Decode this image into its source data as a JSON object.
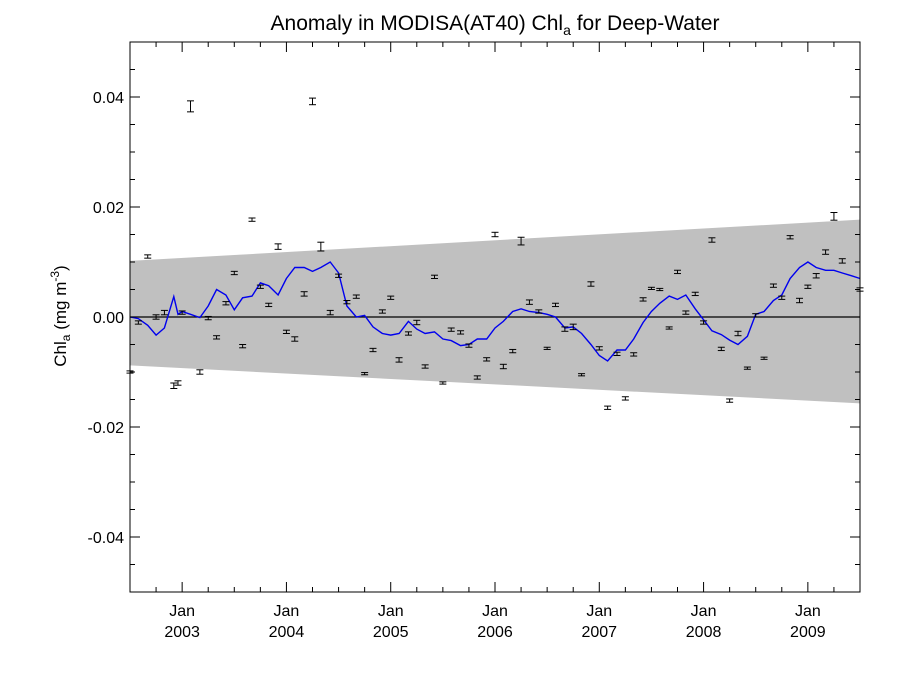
{
  "chart_data": {
    "type": "line",
    "title": "Anomaly in MODISA(AT40) Chl",
    "title_subscript": "a",
    "title_suffix": " for Deep-Water",
    "ylabel": "Chl",
    "ylabel_subscript": "a",
    "ylabel_units_open": " (mg m",
    "ylabel_units_sup": "-3",
    "ylabel_units_close": ")",
    "xlim": [
      2002.5,
      2009.5
    ],
    "ylim": [
      -0.05,
      0.05
    ],
    "y_ticks": [
      -0.04,
      -0.02,
      0.0,
      0.02,
      0.04
    ],
    "y_tick_labels": [
      "-0.04",
      "-0.02",
      "0.00",
      "0.02",
      "0.04"
    ],
    "x_ticks": [
      {
        "x": 2003.0,
        "month": "Jan",
        "year": "2003"
      },
      {
        "x": 2004.0,
        "month": "Jan",
        "year": "2004"
      },
      {
        "x": 2005.0,
        "month": "Jan",
        "year": "2005"
      },
      {
        "x": 2006.0,
        "month": "Jan",
        "year": "2006"
      },
      {
        "x": 2007.0,
        "month": "Jan",
        "year": "2007"
      },
      {
        "x": 2008.0,
        "month": "Jan",
        "year": "2008"
      },
      {
        "x": 2009.0,
        "month": "Jan",
        "year": "2009"
      }
    ],
    "grid": false,
    "zero_line": true,
    "band": {
      "color": "#c0c0c0",
      "upper": [
        [
          2002.5,
          0.0102
        ],
        [
          2009.5,
          0.0177
        ]
      ],
      "lower": [
        [
          2002.5,
          -0.0088
        ],
        [
          2009.5,
          -0.0157
        ]
      ]
    },
    "line_color": "#0000ee",
    "line": [
      [
        2002.5,
        0.0
      ],
      [
        2002.58,
        -0.0003
      ],
      [
        2002.67,
        -0.0015
      ],
      [
        2002.75,
        -0.0033
      ],
      [
        2002.83,
        -0.002
      ],
      [
        2002.92,
        0.0037
      ],
      [
        2002.96,
        0.0005
      ],
      [
        2003.0,
        0.001
      ],
      [
        2003.08,
        0.0005
      ],
      [
        2003.17,
        -0.0001
      ],
      [
        2003.25,
        0.002
      ],
      [
        2003.33,
        0.005
      ],
      [
        2003.42,
        0.004
      ],
      [
        2003.5,
        0.0013
      ],
      [
        2003.58,
        0.0035
      ],
      [
        2003.67,
        0.0038
      ],
      [
        2003.75,
        0.0062
      ],
      [
        2003.83,
        0.0057
      ],
      [
        2003.92,
        0.004
      ],
      [
        2004.0,
        0.007
      ],
      [
        2004.08,
        0.009
      ],
      [
        2004.17,
        0.009
      ],
      [
        2004.25,
        0.0083
      ],
      [
        2004.33,
        0.009
      ],
      [
        2004.42,
        0.01
      ],
      [
        2004.5,
        0.008
      ],
      [
        2004.58,
        0.002
      ],
      [
        2004.67,
        0.0
      ],
      [
        2004.75,
        0.0003
      ],
      [
        2004.83,
        -0.0018
      ],
      [
        2004.92,
        -0.003
      ],
      [
        2005.0,
        -0.0033
      ],
      [
        2005.08,
        -0.003
      ],
      [
        2005.17,
        -0.0008
      ],
      [
        2005.25,
        -0.0022
      ],
      [
        2005.33,
        -0.003
      ],
      [
        2005.42,
        -0.0027
      ],
      [
        2005.5,
        -0.004
      ],
      [
        2005.58,
        -0.0043
      ],
      [
        2005.67,
        -0.0052
      ],
      [
        2005.75,
        -0.005
      ],
      [
        2005.83,
        -0.004
      ],
      [
        2005.92,
        -0.004
      ],
      [
        2006.0,
        -0.002
      ],
      [
        2006.08,
        -0.0008
      ],
      [
        2006.17,
        0.001
      ],
      [
        2006.25,
        0.0015
      ],
      [
        2006.33,
        0.001
      ],
      [
        2006.42,
        0.0008
      ],
      [
        2006.5,
        0.0005
      ],
      [
        2006.58,
        0.0
      ],
      [
        2006.67,
        -0.002
      ],
      [
        2006.75,
        -0.0018
      ],
      [
        2006.83,
        -0.003
      ],
      [
        2006.92,
        -0.005
      ],
      [
        2007.0,
        -0.007
      ],
      [
        2007.08,
        -0.008
      ],
      [
        2007.17,
        -0.006
      ],
      [
        2007.25,
        -0.006
      ],
      [
        2007.33,
        -0.004
      ],
      [
        2007.42,
        -0.001
      ],
      [
        2007.5,
        0.001
      ],
      [
        2007.58,
        0.0025
      ],
      [
        2007.67,
        0.0038
      ],
      [
        2007.75,
        0.0032
      ],
      [
        2007.83,
        0.004
      ],
      [
        2007.92,
        0.0015
      ],
      [
        2008.0,
        -0.0005
      ],
      [
        2008.08,
        -0.0025
      ],
      [
        2008.17,
        -0.0032
      ],
      [
        2008.25,
        -0.0042
      ],
      [
        2008.33,
        -0.005
      ],
      [
        2008.42,
        -0.0035
      ],
      [
        2008.5,
        0.0005
      ],
      [
        2008.58,
        0.001
      ],
      [
        2008.67,
        0.003
      ],
      [
        2008.75,
        0.004
      ],
      [
        2008.83,
        0.007
      ],
      [
        2008.92,
        0.009
      ],
      [
        2009.0,
        0.01
      ],
      [
        2009.08,
        0.009
      ],
      [
        2009.17,
        0.0085
      ],
      [
        2009.25,
        0.0085
      ],
      [
        2009.33,
        0.008
      ],
      [
        2009.42,
        0.0075
      ],
      [
        2009.5,
        0.007
      ]
    ],
    "points": [
      [
        2002.5,
        -0.01,
        0.0002
      ],
      [
        2002.58,
        -0.001,
        0.0003
      ],
      [
        2002.67,
        0.011,
        0.0003
      ],
      [
        2002.75,
        0.0,
        0.0004
      ],
      [
        2002.83,
        0.0008,
        0.0004
      ],
      [
        2002.92,
        -0.0125,
        0.0005
      ],
      [
        2002.96,
        -0.012,
        0.0004
      ],
      [
        2003.0,
        0.0008,
        0.0003
      ],
      [
        2003.08,
        0.0383,
        0.001
      ],
      [
        2003.17,
        -0.01,
        0.0004
      ],
      [
        2003.25,
        -0.0002,
        0.0003
      ],
      [
        2003.33,
        -0.0037,
        0.0003
      ],
      [
        2003.42,
        0.0025,
        0.0003
      ],
      [
        2003.5,
        0.008,
        0.0003
      ],
      [
        2003.58,
        -0.0053,
        0.0003
      ],
      [
        2003.67,
        0.0177,
        0.0003
      ],
      [
        2003.75,
        0.0055,
        0.0003
      ],
      [
        2003.83,
        0.0022,
        0.0003
      ],
      [
        2003.92,
        0.0128,
        0.0005
      ],
      [
        2004.0,
        -0.0027,
        0.0003
      ],
      [
        2004.08,
        -0.004,
        0.0004
      ],
      [
        2004.17,
        0.0042,
        0.0004
      ],
      [
        2004.25,
        0.0392,
        0.0006
      ],
      [
        2004.33,
        0.0128,
        0.0008
      ],
      [
        2004.42,
        0.0008,
        0.0004
      ],
      [
        2004.5,
        0.0075,
        0.0003
      ],
      [
        2004.58,
        0.0027,
        0.0003
      ],
      [
        2004.67,
        0.0037,
        0.0003
      ],
      [
        2004.75,
        -0.0103,
        0.0002
      ],
      [
        2004.83,
        -0.006,
        0.0003
      ],
      [
        2004.92,
        0.001,
        0.0003
      ],
      [
        2005.0,
        0.0035,
        0.0003
      ],
      [
        2005.08,
        -0.0078,
        0.0004
      ],
      [
        2005.17,
        -0.003,
        0.0003
      ],
      [
        2005.25,
        -0.001,
        0.0004
      ],
      [
        2005.33,
        -0.009,
        0.0003
      ],
      [
        2005.42,
        0.0073,
        0.0003
      ],
      [
        2005.5,
        -0.012,
        0.0002
      ],
      [
        2005.58,
        -0.0023,
        0.0003
      ],
      [
        2005.67,
        -0.0028,
        0.0003
      ],
      [
        2005.75,
        -0.0052,
        0.0003
      ],
      [
        2005.83,
        -0.011,
        0.0003
      ],
      [
        2005.92,
        -0.0077,
        0.0003
      ],
      [
        2006.0,
        0.015,
        0.0004
      ],
      [
        2006.08,
        -0.009,
        0.0004
      ],
      [
        2006.17,
        -0.0062,
        0.0003
      ],
      [
        2006.25,
        0.0138,
        0.0007
      ],
      [
        2006.33,
        0.0027,
        0.0004
      ],
      [
        2006.42,
        0.001,
        0.0003
      ],
      [
        2006.5,
        -0.0057,
        0.0002
      ],
      [
        2006.58,
        0.0022,
        0.0003
      ],
      [
        2006.67,
        -0.0022,
        0.0004
      ],
      [
        2006.75,
        -0.0018,
        0.0005
      ],
      [
        2006.83,
        -0.0105,
        0.0002
      ],
      [
        2006.92,
        0.006,
        0.0004
      ],
      [
        2007.0,
        -0.0057,
        0.0003
      ],
      [
        2007.08,
        -0.0165,
        0.0003
      ],
      [
        2007.17,
        -0.0067,
        0.0003
      ],
      [
        2007.25,
        -0.0148,
        0.0003
      ],
      [
        2007.33,
        -0.0068,
        0.0003
      ],
      [
        2007.42,
        0.0032,
        0.0003
      ],
      [
        2007.5,
        0.0052,
        0.0002
      ],
      [
        2007.58,
        0.005,
        0.0002
      ],
      [
        2007.67,
        -0.002,
        0.0002
      ],
      [
        2007.75,
        0.0082,
        0.0003
      ],
      [
        2007.83,
        0.0008,
        0.0003
      ],
      [
        2007.92,
        0.0042,
        0.0003
      ],
      [
        2008.0,
        -0.001,
        0.0003
      ],
      [
        2008.08,
        0.014,
        0.0004
      ],
      [
        2008.17,
        -0.0058,
        0.0003
      ],
      [
        2008.25,
        -0.0152,
        0.0003
      ],
      [
        2008.33,
        -0.003,
        0.0004
      ],
      [
        2008.42,
        -0.0093,
        0.0002
      ],
      [
        2008.5,
        0.0003,
        0.0003
      ],
      [
        2008.58,
        -0.0075,
        0.0002
      ],
      [
        2008.67,
        0.0057,
        0.0003
      ],
      [
        2008.75,
        0.0035,
        0.0003
      ],
      [
        2008.83,
        0.0145,
        0.0003
      ],
      [
        2008.92,
        0.003,
        0.0004
      ],
      [
        2009.0,
        0.0055,
        0.0003
      ],
      [
        2009.08,
        0.0075,
        0.0004
      ],
      [
        2009.17,
        0.0118,
        0.0004
      ],
      [
        2009.25,
        0.0183,
        0.0007
      ],
      [
        2009.33,
        0.0102,
        0.0004
      ],
      [
        2009.5,
        0.005,
        0.0003
      ]
    ]
  }
}
